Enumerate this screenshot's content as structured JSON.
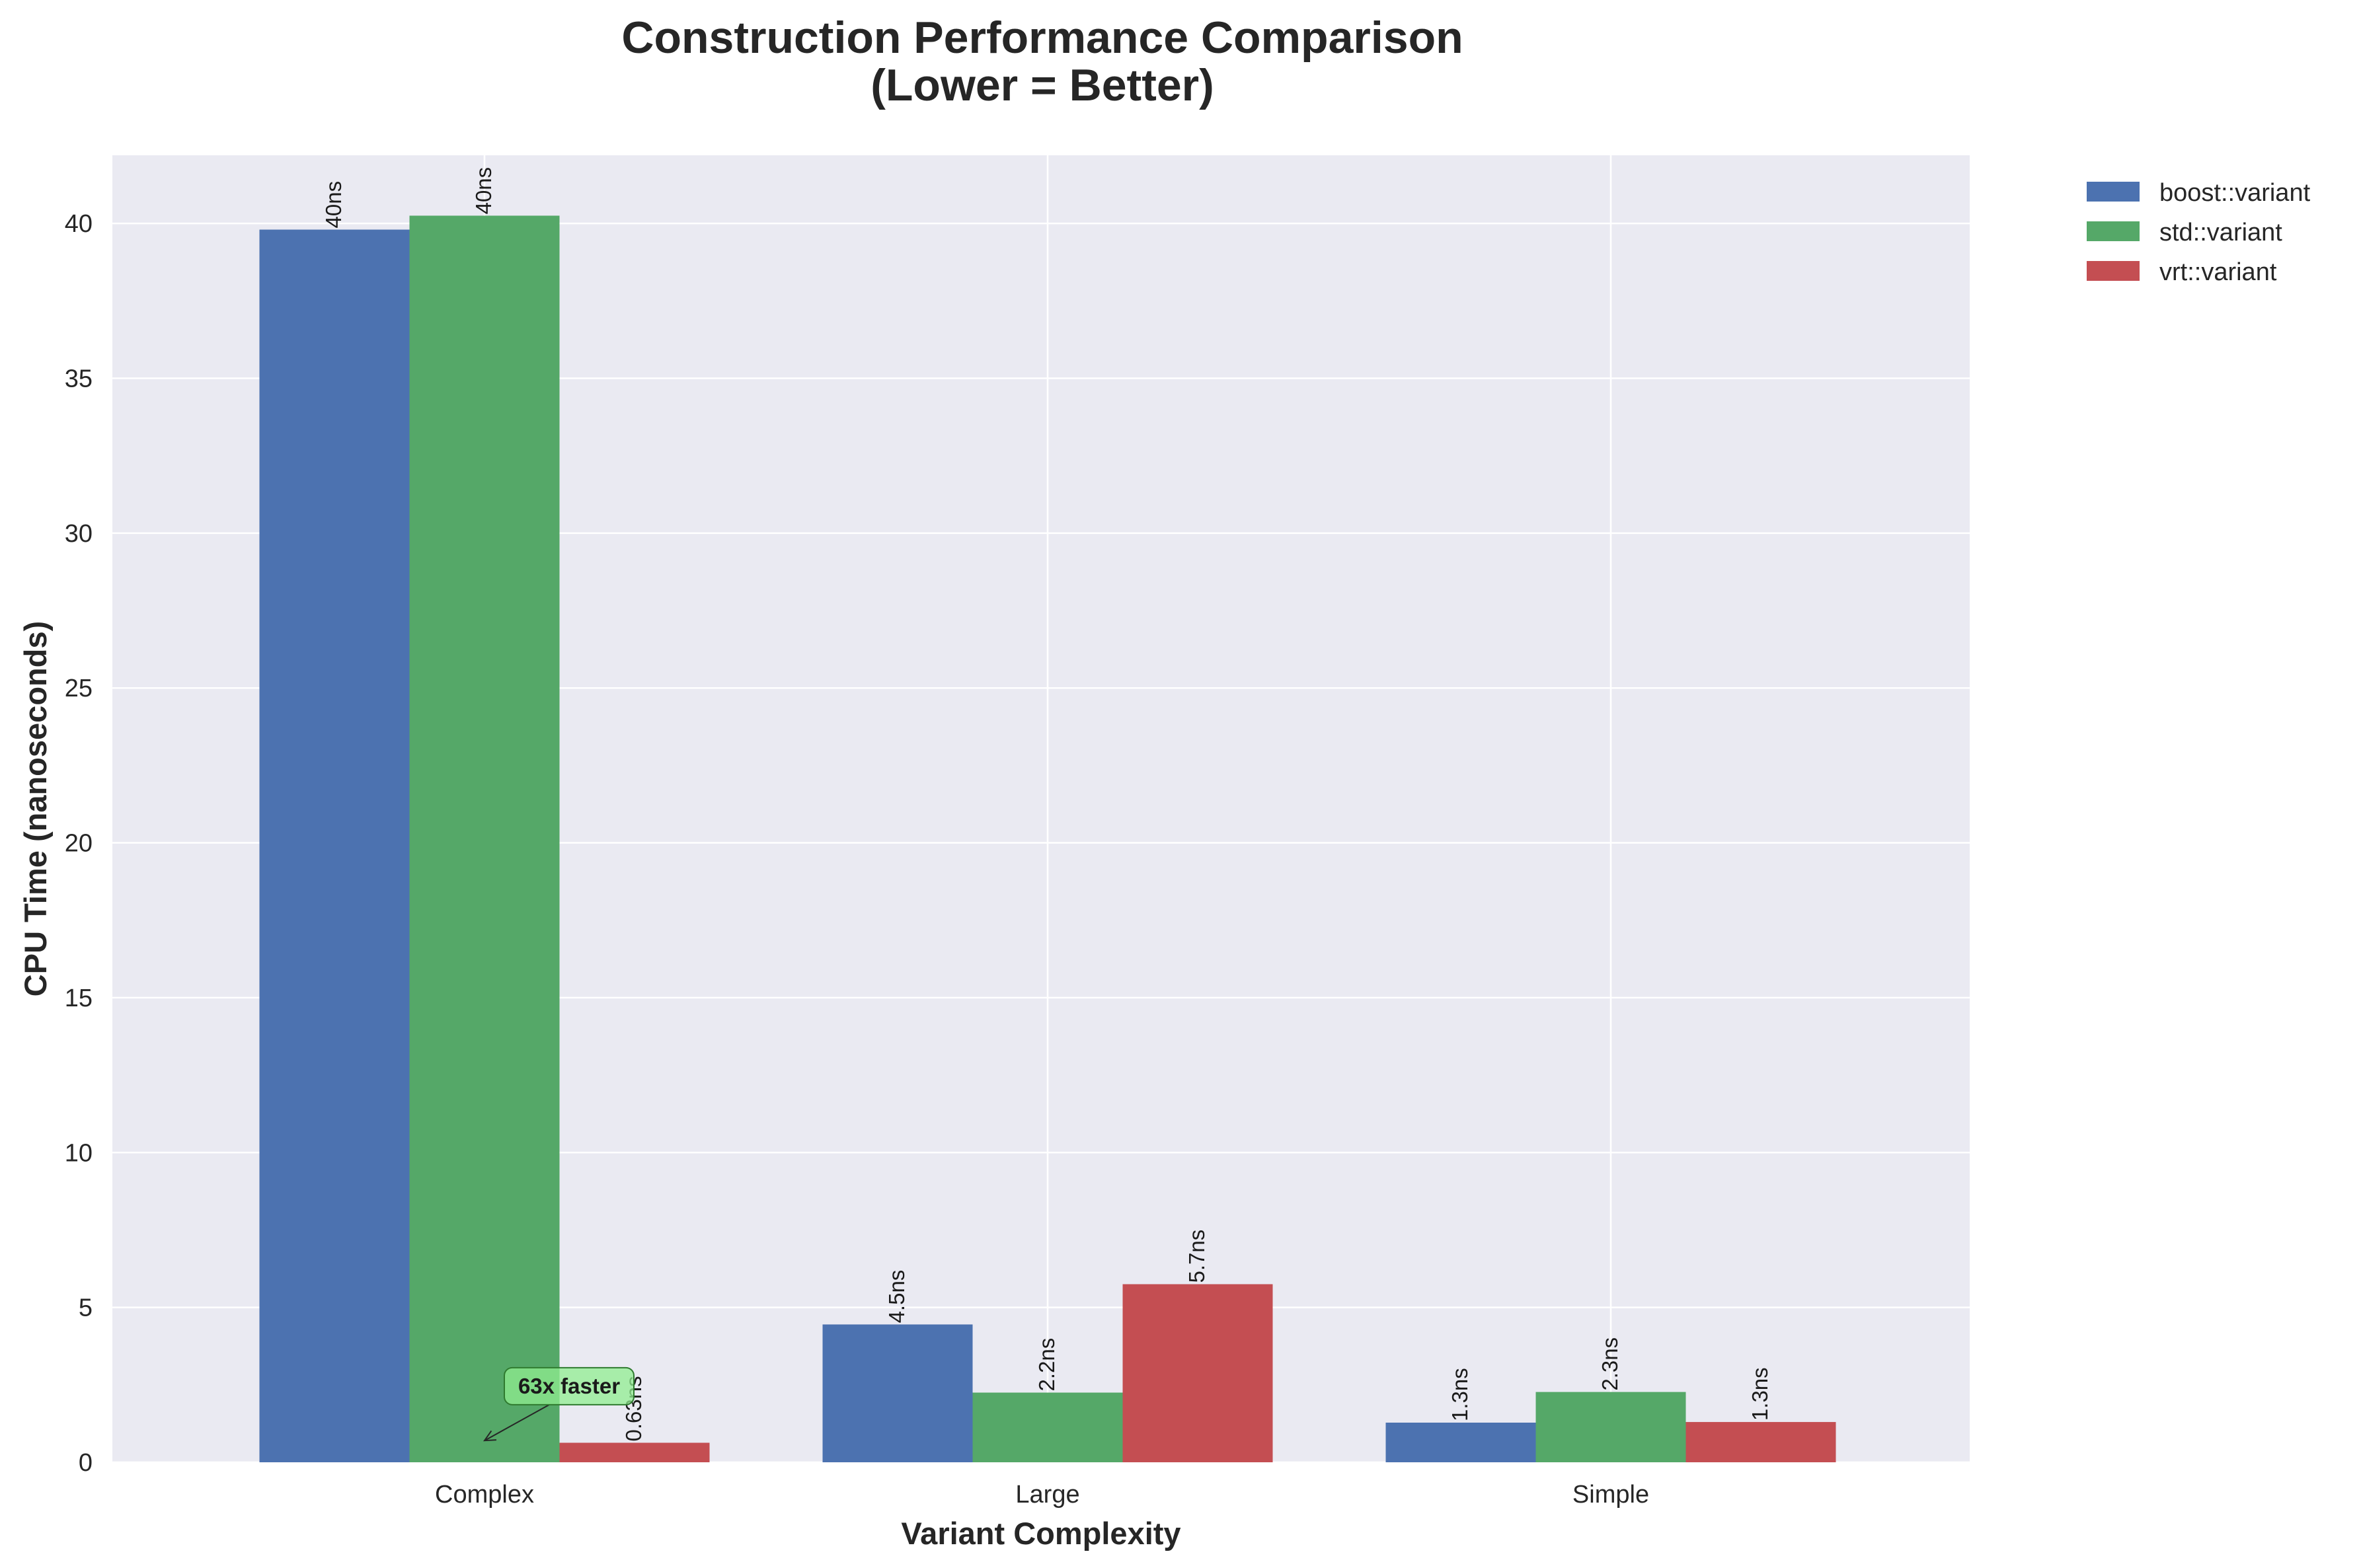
{
  "chart_data": {
    "type": "bar",
    "title": "Construction Performance Comparison",
    "subtitle": "(Lower = Better)",
    "xlabel": "Variant Complexity",
    "ylabel": "CPU Time (nanoseconds)",
    "categories": [
      "Complex",
      "Large",
      "Simple"
    ],
    "ylim": [
      0,
      42.2
    ],
    "yticks": [
      0,
      5,
      10,
      15,
      20,
      25,
      30,
      35,
      40
    ],
    "grid": true,
    "legend_position": "outside top-right",
    "series": [
      {
        "name": "boost::variant",
        "color": "#4c72b0",
        "values": [
          39.8,
          4.45,
          1.28
        ],
        "labels": [
          "40ns",
          "4.5ns",
          "1.3ns"
        ]
      },
      {
        "name": "std::variant",
        "color": "#55a868",
        "values": [
          40.25,
          2.25,
          2.27
        ],
        "labels": [
          "40ns",
          "2.2ns",
          "2.3ns"
        ]
      },
      {
        "name": "vrt::variant",
        "color": "#c44e52",
        "values": [
          0.63,
          5.75,
          1.3
        ],
        "labels": [
          "0.63ns",
          "5.7ns",
          "1.3ns"
        ]
      }
    ],
    "annotations": [
      {
        "text": "63x faster",
        "category": "Complex",
        "point_value": 0.7,
        "text_value": 2.5,
        "box_color": "#90ee90"
      }
    ]
  },
  "colors": {
    "plot_background": "#eaeaf2",
    "grid": "#ffffff",
    "text": "#262626"
  }
}
